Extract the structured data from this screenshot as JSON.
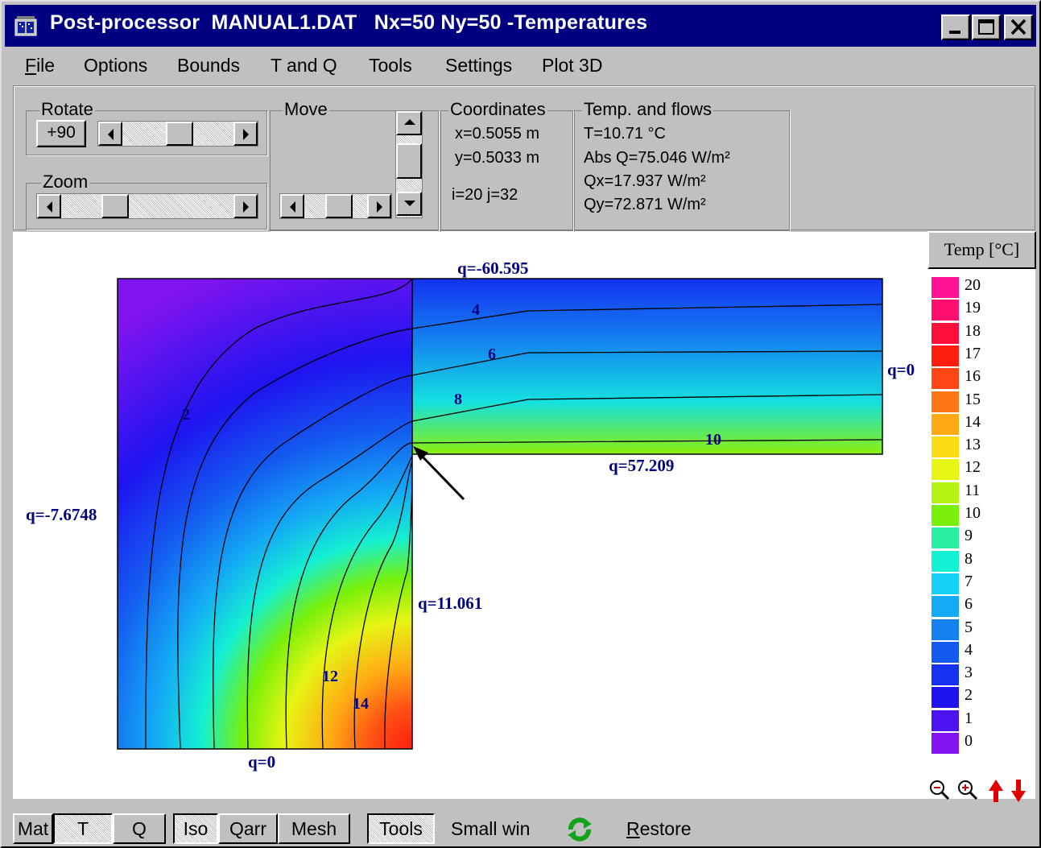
{
  "window": {
    "title": "Post-processor  MANUAL1.DAT   Nx=50 Ny=50 -Temperatures",
    "minimize_icon": "minimize-icon",
    "maximize_icon": "maximize-icon",
    "close_icon": "close-icon"
  },
  "menu": [
    {
      "label": "File",
      "mnemonic": "F"
    },
    {
      "label": "Options"
    },
    {
      "label": "Bounds"
    },
    {
      "label": "T and Q"
    },
    {
      "label": "Tools"
    },
    {
      "label": "Settings"
    },
    {
      "label": "Plot 3D"
    }
  ],
  "rotate": {
    "title": "Rotate",
    "button": "+90"
  },
  "zoom": {
    "title": "Zoom"
  },
  "move": {
    "title": "Move"
  },
  "coordinates": {
    "title": "Coordinates",
    "x": "x=0.5055 m",
    "y": "y=0.5033 m",
    "ij": "i=20 j=32"
  },
  "temp_flows": {
    "title": "Temp. and flows",
    "t": "T=10.71 °C",
    "absq": "Abs Q=75.046 W/m²",
    "qx": "Qx=17.937 W/m²",
    "qy": "Qy=72.871 W/m²"
  },
  "plot": {
    "labels": {
      "q_top": "q=-60.595",
      "q_right": "q=0",
      "q_step": "q=57.209",
      "q_left": "q=-7.6748",
      "q_inner": "q=11.061",
      "q_bottom": "q=0"
    },
    "iso_labels": [
      "2",
      "4",
      "6",
      "8",
      "10",
      "12",
      "14"
    ]
  },
  "legend": {
    "title": "Temp [°C]",
    "entries": [
      {
        "label": "20",
        "color": "#ff1493"
      },
      {
        "label": "19",
        "color": "#ff0f6e"
      },
      {
        "label": "18",
        "color": "#ff0f3c"
      },
      {
        "label": "17",
        "color": "#ff1e0f"
      },
      {
        "label": "16",
        "color": "#ff4614"
      },
      {
        "label": "15",
        "color": "#ff7814"
      },
      {
        "label": "14",
        "color": "#ffaa14"
      },
      {
        "label": "13",
        "color": "#fadc14"
      },
      {
        "label": "12",
        "color": "#e6f514"
      },
      {
        "label": "11",
        "color": "#b4f514"
      },
      {
        "label": "10",
        "color": "#78f00a"
      },
      {
        "label": "9",
        "color": "#28f0a0"
      },
      {
        "label": "8",
        "color": "#14f0d2"
      },
      {
        "label": "7",
        "color": "#14d2f5"
      },
      {
        "label": "6",
        "color": "#14aaf5"
      },
      {
        "label": "5",
        "color": "#1482f0"
      },
      {
        "label": "4",
        "color": "#145af0"
      },
      {
        "label": "3",
        "color": "#1432f0"
      },
      {
        "label": "2",
        "color": "#1e14f0"
      },
      {
        "label": "1",
        "color": "#4b14f0"
      },
      {
        "label": "0",
        "color": "#8214f0"
      }
    ]
  },
  "plot_tools": [
    "zoom-out-icon",
    "zoom-in-icon",
    "arrow-up-icon",
    "arrow-down-icon"
  ],
  "statusbar": {
    "mat": "Mat",
    "t": "T",
    "q": "Q",
    "iso": "Iso",
    "qarr": "Qarr",
    "mesh": "Mesh",
    "tools": "Tools",
    "small_win": "Small win",
    "restore": "Restore",
    "refresh_icon": "refresh-icon"
  }
}
